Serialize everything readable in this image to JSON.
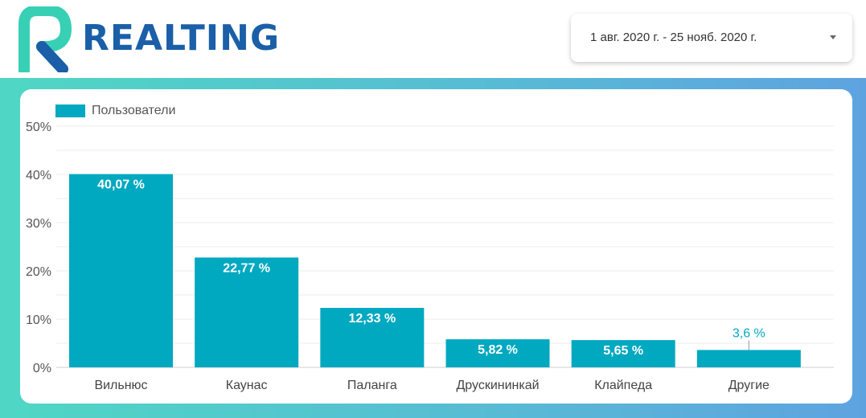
{
  "header": {
    "logo_text": "REALTING",
    "date_range": "1 авг. 2020 г. - 25 нояб. 2020 г.",
    "brand_color": "#1a5fa8",
    "logo_accent_color": "#38d0b4"
  },
  "chart_data": {
    "type": "bar",
    "categories": [
      "Вильнюс",
      "Каунас",
      "Паланга",
      "Друскининкай",
      "Клайпеда",
      "Другие"
    ],
    "series": [
      {
        "name": "Пользователи",
        "values": [
          40.07,
          22.77,
          12.33,
          5.82,
          5.65,
          3.6
        ],
        "labels": [
          "40,07 %",
          "22,77 %",
          "12,33 %",
          "5,82 %",
          "5,65 %",
          "3,6 %"
        ],
        "color": "#00a8c0"
      }
    ],
    "title": "",
    "xlabel": "",
    "ylabel": "",
    "ylim": [
      0,
      50
    ],
    "yticks": [
      0,
      10,
      20,
      30,
      40,
      50
    ],
    "ytick_labels": [
      "0%",
      "10%",
      "20%",
      "30%",
      "40%",
      "50%"
    ],
    "grid": true,
    "legend_position": "top-left"
  }
}
